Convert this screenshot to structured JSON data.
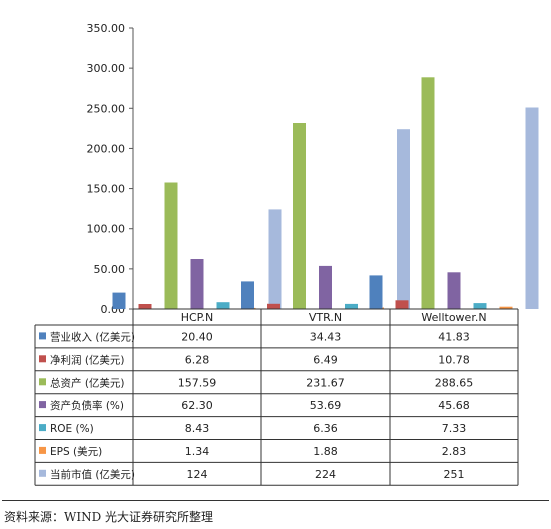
{
  "chart_data": {
    "type": "bar",
    "categories": [
      "HCP.N",
      "VTR.N",
      "Welltower.N"
    ],
    "series": [
      {
        "name": "营业收入 (亿美元)",
        "color": "#4f81bd",
        "values": [
          20.4,
          34.43,
          41.83
        ],
        "labels": [
          "20.40",
          "34.43",
          "41.83"
        ]
      },
      {
        "name": "净利润 (亿美元)",
        "color": "#c0504d",
        "values": [
          6.28,
          6.49,
          10.78
        ],
        "labels": [
          "6.28",
          "6.49",
          "10.78"
        ]
      },
      {
        "name": "总资产 (亿美元)",
        "color": "#9bbb59",
        "values": [
          157.59,
          231.67,
          288.65
        ],
        "labels": [
          "157.59",
          "231.67",
          "288.65"
        ]
      },
      {
        "name": "资产负债率 (%)",
        "color": "#8064a2",
        "values": [
          62.3,
          53.69,
          45.68
        ],
        "labels": [
          "62.30",
          "53.69",
          "45.68"
        ]
      },
      {
        "name": "ROE (%)",
        "color": "#4bacc6",
        "values": [
          8.43,
          6.36,
          7.33
        ],
        "labels": [
          "8.43",
          "6.36",
          "7.33"
        ]
      },
      {
        "name": "EPS (美元)",
        "color": "#f79646",
        "values": [
          1.34,
          1.88,
          2.83
        ],
        "labels": [
          "1.34",
          "1.88",
          "2.83"
        ]
      },
      {
        "name": "当前市值 (亿美元)",
        "color": "#a6b9dc",
        "values": [
          124,
          224,
          251
        ],
        "labels": [
          "124",
          "224",
          "251"
        ]
      }
    ],
    "ylim": [
      0,
      350
    ],
    "yticks": [
      "0.00",
      "50.00",
      "100.00",
      "150.00",
      "200.00",
      "250.00",
      "300.00",
      "350.00"
    ],
    "grid": false,
    "legend": "data table below chart"
  },
  "source": "资料来源：WIND 光大证券研究所整理"
}
